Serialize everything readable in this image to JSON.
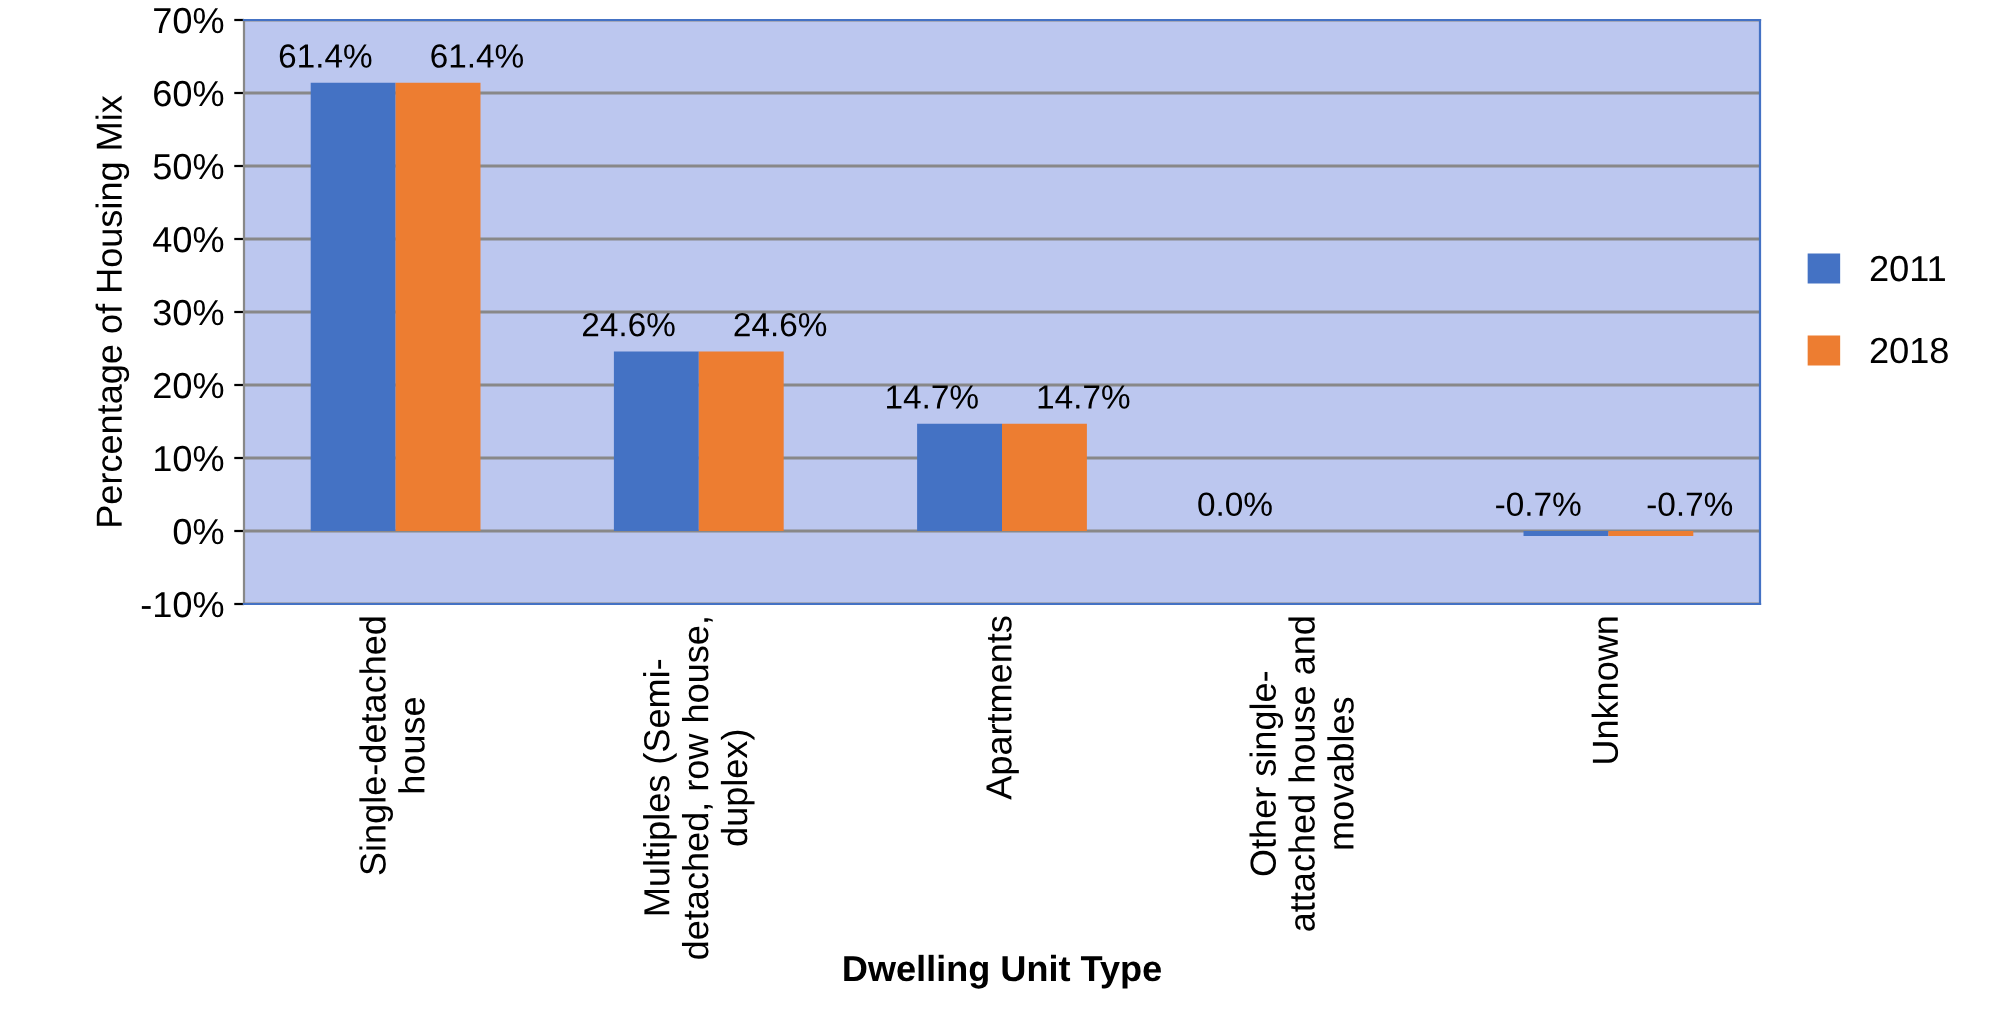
{
  "chart_data": {
    "type": "bar",
    "xlabel": "Dwelling Unit Type",
    "ylabel": "Percentage of Housing Mix",
    "categories": [
      "Single-detached house",
      "Multiples (Semi-detached, row house, duplex)",
      "Apartments",
      "Other single-attached house and movables",
      "Unknown"
    ],
    "series": [
      {
        "name": "2011",
        "color": "#4472c4",
        "values": [
          61.4,
          24.6,
          14.7,
          0.0,
          -0.7
        ]
      },
      {
        "name": "2018",
        "color": "#ed7d31",
        "values": [
          61.4,
          24.6,
          14.7,
          0.0,
          -0.7
        ]
      }
    ],
    "value_labels": [
      [
        "61.4%",
        "24.6%",
        "14.7%",
        "0.0%",
        "-0.7%"
      ],
      [
        "61.4%",
        "24.6%",
        "14.7%",
        null,
        "-0.7%"
      ]
    ],
    "ylim": [
      -10,
      70
    ],
    "yticks": [
      {
        "value": -10,
        "label": "-10%"
      },
      {
        "value": 0,
        "label": "0%"
      },
      {
        "value": 10,
        "label": "10%"
      },
      {
        "value": 20,
        "label": "20%"
      },
      {
        "value": 30,
        "label": "30%"
      },
      {
        "value": 40,
        "label": "40%"
      },
      {
        "value": 50,
        "label": "50%"
      },
      {
        "value": 60,
        "label": "60%"
      },
      {
        "value": 70,
        "label": "70%"
      }
    ],
    "grid": "y",
    "legend": "right"
  }
}
